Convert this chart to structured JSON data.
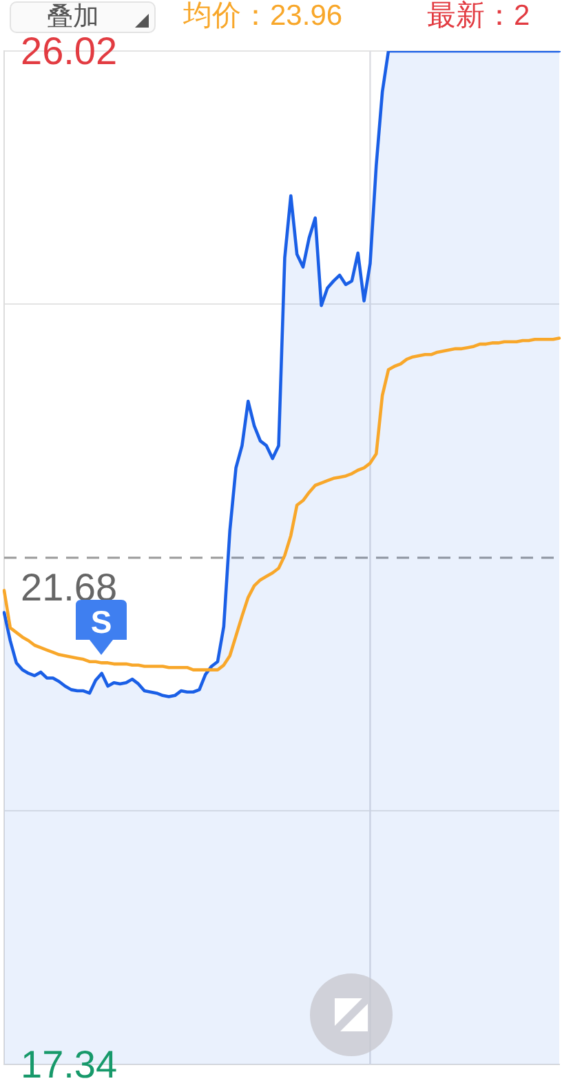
{
  "chart_data": {
    "type": "line",
    "categories": [
      null,
      null,
      null,
      null,
      null,
      null,
      null,
      null,
      null,
      null,
      null,
      null,
      null,
      null,
      null,
      null,
      null,
      null,
      null,
      null,
      null,
      null,
      null,
      null,
      null,
      null,
      null,
      null,
      null,
      null,
      null,
      null,
      null,
      null,
      null,
      null,
      null,
      null,
      null,
      null,
      null,
      null,
      null,
      null,
      null,
      null,
      null,
      null,
      null,
      null,
      null,
      null,
      null,
      null,
      null,
      null,
      null,
      null,
      null,
      null,
      null,
      null,
      null,
      null,
      null,
      null,
      null,
      null,
      null,
      null,
      null,
      null,
      null,
      null,
      null,
      null,
      null,
      null,
      null,
      null,
      null,
      null,
      null,
      null,
      null,
      null,
      null,
      null,
      null,
      null,
      null,
      null
    ],
    "series": [
      {
        "type": "area",
        "color": "#1a5fe6",
        "values": [
          21.21,
          20.97,
          20.78,
          20.72,
          20.69,
          20.67,
          20.7,
          20.65,
          20.65,
          20.62,
          20.58,
          20.55,
          20.54,
          20.54,
          20.52,
          20.63,
          20.69,
          20.58,
          20.61,
          20.6,
          20.61,
          20.64,
          20.6,
          20.54,
          20.53,
          20.52,
          20.5,
          20.49,
          20.5,
          20.54,
          20.53,
          20.53,
          20.55,
          20.68,
          20.75,
          20.79,
          21.09,
          21.91,
          22.45,
          22.64,
          23.02,
          22.81,
          22.68,
          22.64,
          22.53,
          22.64,
          24.25,
          24.78,
          24.28,
          24.17,
          24.42,
          24.59,
          23.84,
          23.99,
          24.05,
          24.1,
          24.02,
          24.05,
          24.29,
          23.88,
          24.2,
          25.04,
          25.67,
          26.02,
          26.02,
          26.02,
          26.02,
          26.02,
          26.02,
          26.02,
          26.02,
          26.02,
          26.02,
          26.02,
          26.02,
          26.02,
          26.02,
          26.02,
          26.02,
          26.02,
          26.02,
          26.02,
          26.02,
          26.02,
          26.02,
          26.02,
          26.02,
          26.02,
          26.02,
          26.02,
          26.02,
          26.02
        ]
      },
      {
        "type": "line",
        "color": "#f8a72a",
        "values": [
          21.4,
          21.08,
          21.04,
          21.0,
          20.97,
          20.93,
          20.91,
          20.89,
          20.87,
          20.85,
          20.84,
          20.83,
          20.82,
          20.81,
          20.79,
          20.79,
          20.78,
          20.78,
          20.77,
          20.77,
          20.77,
          20.76,
          20.76,
          20.75,
          20.75,
          20.75,
          20.75,
          20.74,
          20.74,
          20.74,
          20.74,
          20.72,
          20.72,
          20.72,
          20.72,
          20.72,
          20.76,
          20.84,
          21.01,
          21.18,
          21.34,
          21.44,
          21.49,
          21.52,
          21.55,
          21.59,
          21.7,
          21.87,
          22.13,
          22.17,
          22.24,
          22.3,
          22.32,
          22.34,
          22.36,
          22.37,
          22.38,
          22.4,
          22.43,
          22.45,
          22.49,
          22.57,
          23.07,
          23.29,
          23.32,
          23.34,
          23.38,
          23.4,
          23.41,
          23.42,
          23.42,
          23.44,
          23.45,
          23.46,
          23.47,
          23.47,
          23.48,
          23.49,
          23.51,
          23.51,
          23.52,
          23.52,
          23.53,
          23.53,
          23.53,
          23.54,
          23.54,
          23.55,
          23.55,
          23.55,
          23.55,
          23.56
        ]
      }
    ],
    "ylim": [
      17.34,
      26.02
    ],
    "yticks": [
      17.34,
      {
        "value": 19.51,
        "label": null
      },
      {
        "value": 21.68,
        "label": null
      },
      {
        "value": 23.85,
        "label": null
      },
      26.02
    ],
    "grid": "y",
    "marker": "none",
    "line_style": "solid",
    "ref_lines": [
      {
        "axis": "y",
        "value": 21.68,
        "label": "21.68",
        "line_style": "dashed",
        "color": "#9a9a9a"
      }
    ],
    "annotations": [
      "叠加",
      "均价：23.96",
      "最新：2",
      "S"
    ]
  }
}
